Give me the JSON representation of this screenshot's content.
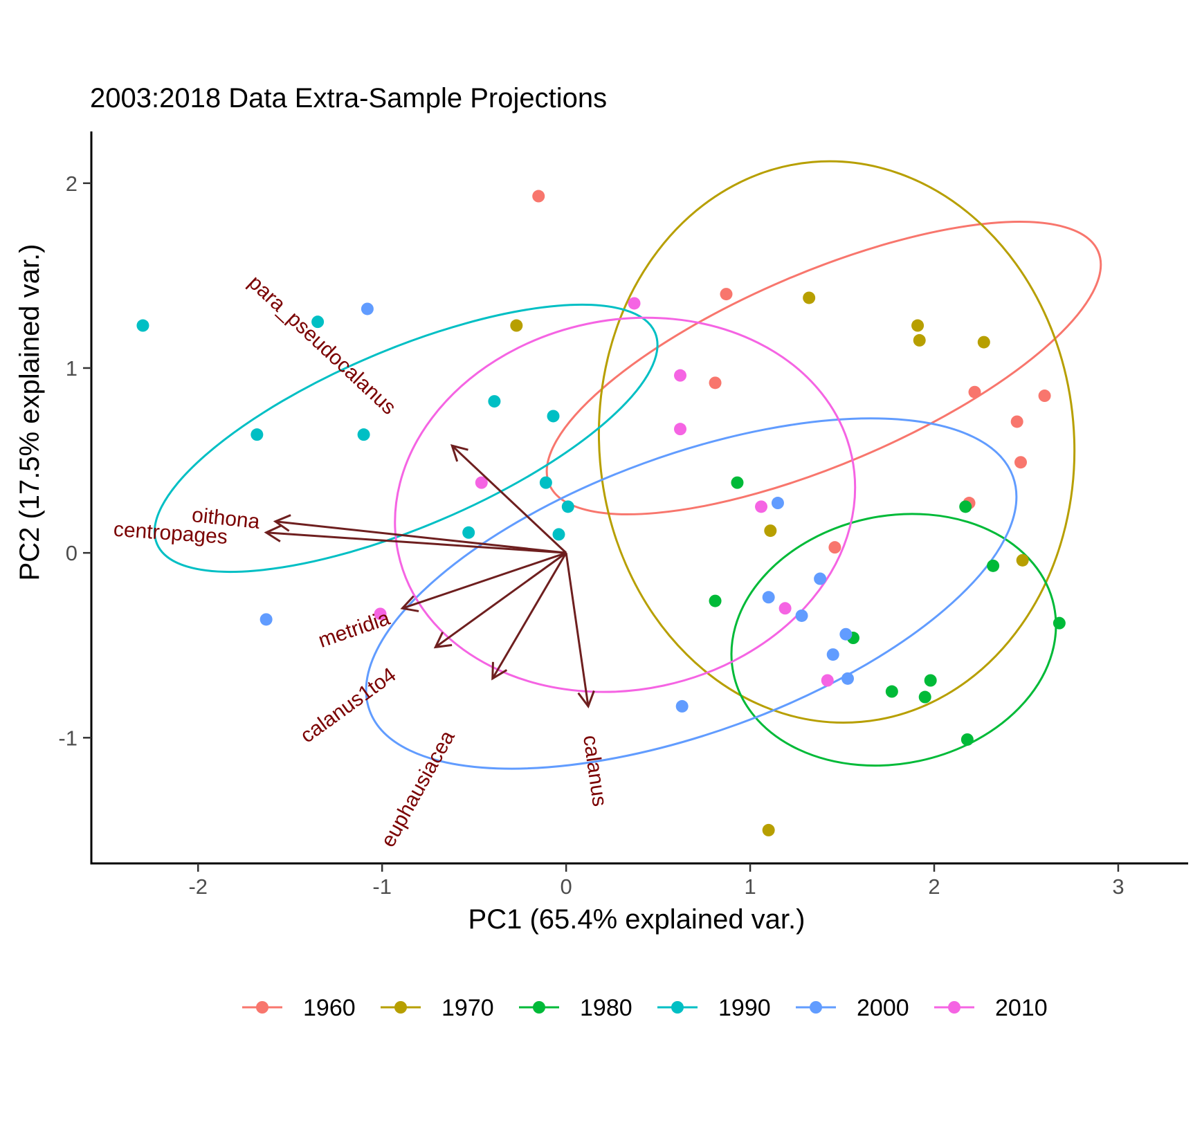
{
  "chart_data": {
    "type": "scatter",
    "title": "2003:2018 Data Extra-Sample Projections",
    "xlabel": "PC1 (65.4% explained var.)",
    "ylabel": "PC2 (17.5% explained var.)",
    "xlim": [
      -2.58,
      3.38
    ],
    "ylim": [
      -1.68,
      2.28
    ],
    "x_ticks": [
      -2,
      -1,
      0,
      1,
      2,
      3
    ],
    "y_ticks": [
      -1,
      0,
      1,
      2
    ],
    "x_tick_labels": [
      "-2",
      "-1",
      "0",
      "1",
      "2",
      "3"
    ],
    "y_tick_labels": [
      "-1",
      "0",
      "1",
      "2"
    ],
    "grid": false,
    "legend_position": "bottom",
    "series": [
      {
        "name": "1960",
        "color": "#F8766D",
        "points": [
          [
            -0.15,
            1.93
          ],
          [
            0.87,
            1.4
          ],
          [
            0.81,
            0.92
          ],
          [
            2.22,
            0.87
          ],
          [
            2.6,
            0.85
          ],
          [
            2.45,
            0.71
          ],
          [
            2.47,
            0.49
          ],
          [
            2.19,
            0.27
          ],
          [
            1.46,
            0.03
          ]
        ],
        "ellipse": {
          "cx": 1.4,
          "cy": 1.0,
          "rx": 1.62,
          "ry": 0.52,
          "angle": -23
        }
      },
      {
        "name": "1970",
        "color": "#B79F00",
        "points": [
          [
            -0.27,
            1.23
          ],
          [
            1.32,
            1.38
          ],
          [
            1.91,
            1.23
          ],
          [
            1.92,
            1.15
          ],
          [
            2.27,
            1.14
          ],
          [
            1.11,
            0.12
          ],
          [
            2.48,
            -0.04
          ],
          [
            1.1,
            -1.5
          ]
        ],
        "ellipse": {
          "cx": 1.47,
          "cy": 0.6,
          "rx": 1.29,
          "ry": 1.52,
          "angle": -5
        }
      },
      {
        "name": "1980",
        "color": "#00BA38",
        "points": [
          [
            0.93,
            0.38
          ],
          [
            2.17,
            0.25
          ],
          [
            2.32,
            -0.07
          ],
          [
            0.81,
            -0.26
          ],
          [
            1.56,
            -0.46
          ],
          [
            2.68,
            -0.38
          ],
          [
            1.98,
            -0.69
          ],
          [
            1.77,
            -0.75
          ],
          [
            1.95,
            -0.78
          ],
          [
            2.18,
            -1.01
          ]
        ],
        "ellipse": {
          "cx": 1.78,
          "cy": -0.47,
          "rx": 0.89,
          "ry": 0.67,
          "angle": -12
        }
      },
      {
        "name": "1990",
        "color": "#00BFC4",
        "points": [
          [
            -2.3,
            1.23
          ],
          [
            -1.35,
            1.25
          ],
          [
            -0.39,
            0.82
          ],
          [
            -0.07,
            0.74
          ],
          [
            -1.68,
            0.64
          ],
          [
            -1.1,
            0.64
          ],
          [
            -0.11,
            0.38
          ],
          [
            0.01,
            0.25
          ],
          [
            -0.53,
            0.11
          ],
          [
            -0.04,
            0.1
          ]
        ],
        "ellipse": {
          "cx": -0.87,
          "cy": 0.62,
          "rx": 1.47,
          "ry": 0.48,
          "angle": -23
        }
      },
      {
        "name": "2000",
        "color": "#619CFF",
        "points": [
          [
            -1.08,
            1.32
          ],
          [
            1.15,
            0.27
          ],
          [
            1.38,
            -0.14
          ],
          [
            1.1,
            -0.24
          ],
          [
            1.28,
            -0.34
          ],
          [
            -1.63,
            -0.36
          ],
          [
            1.52,
            -0.44
          ],
          [
            1.45,
            -0.55
          ],
          [
            1.53,
            -0.68
          ],
          [
            0.63,
            -0.83
          ]
        ],
        "ellipse": {
          "cx": 0.68,
          "cy": -0.22,
          "rx": 1.86,
          "ry": 0.75,
          "angle": -20
        }
      },
      {
        "name": "2010",
        "color": "#F564E3",
        "points": [
          [
            0.37,
            1.35
          ],
          [
            0.62,
            0.96
          ],
          [
            0.62,
            0.67
          ],
          [
            -0.46,
            0.38
          ],
          [
            1.06,
            0.25
          ],
          [
            1.19,
            -0.3
          ],
          [
            -1.01,
            -0.33
          ],
          [
            1.42,
            -0.69
          ]
        ],
        "ellipse": {
          "cx": 0.32,
          "cy": 0.26,
          "rx": 1.26,
          "ry": 1.0,
          "angle": -12
        }
      }
    ],
    "loadings": {
      "color": "#6E1F1F",
      "label_color": "#7A0000",
      "arrows": [
        {
          "name": "para_pseudocalanus",
          "x": -0.62,
          "y": 0.58,
          "label_x": -1.33,
          "label_y": 1.12,
          "label_angle": 43
        },
        {
          "name": "oithona",
          "x": -1.58,
          "y": 0.17,
          "label_x": -1.85,
          "label_y": 0.18,
          "label_angle": 6
        },
        {
          "name": "centropages",
          "x": -1.63,
          "y": 0.11,
          "label_x": -2.15,
          "label_y": 0.1,
          "label_angle": 4
        },
        {
          "name": "metridia",
          "x": -0.89,
          "y": -0.3,
          "label_x": -1.15,
          "label_y": -0.42,
          "label_angle": -19
        },
        {
          "name": "calanus1to4",
          "x": -0.71,
          "y": -0.51,
          "label_x": -1.18,
          "label_y": -0.83,
          "label_angle": -36
        },
        {
          "name": "euphausiacea",
          "x": -0.4,
          "y": -0.68,
          "label_x": -0.8,
          "label_y": -1.28,
          "label_angle": -61
        },
        {
          "name": "calanus",
          "x": 0.12,
          "y": -0.83,
          "label_x": 0.15,
          "label_y": -1.18,
          "label_angle": 82
        }
      ]
    }
  }
}
